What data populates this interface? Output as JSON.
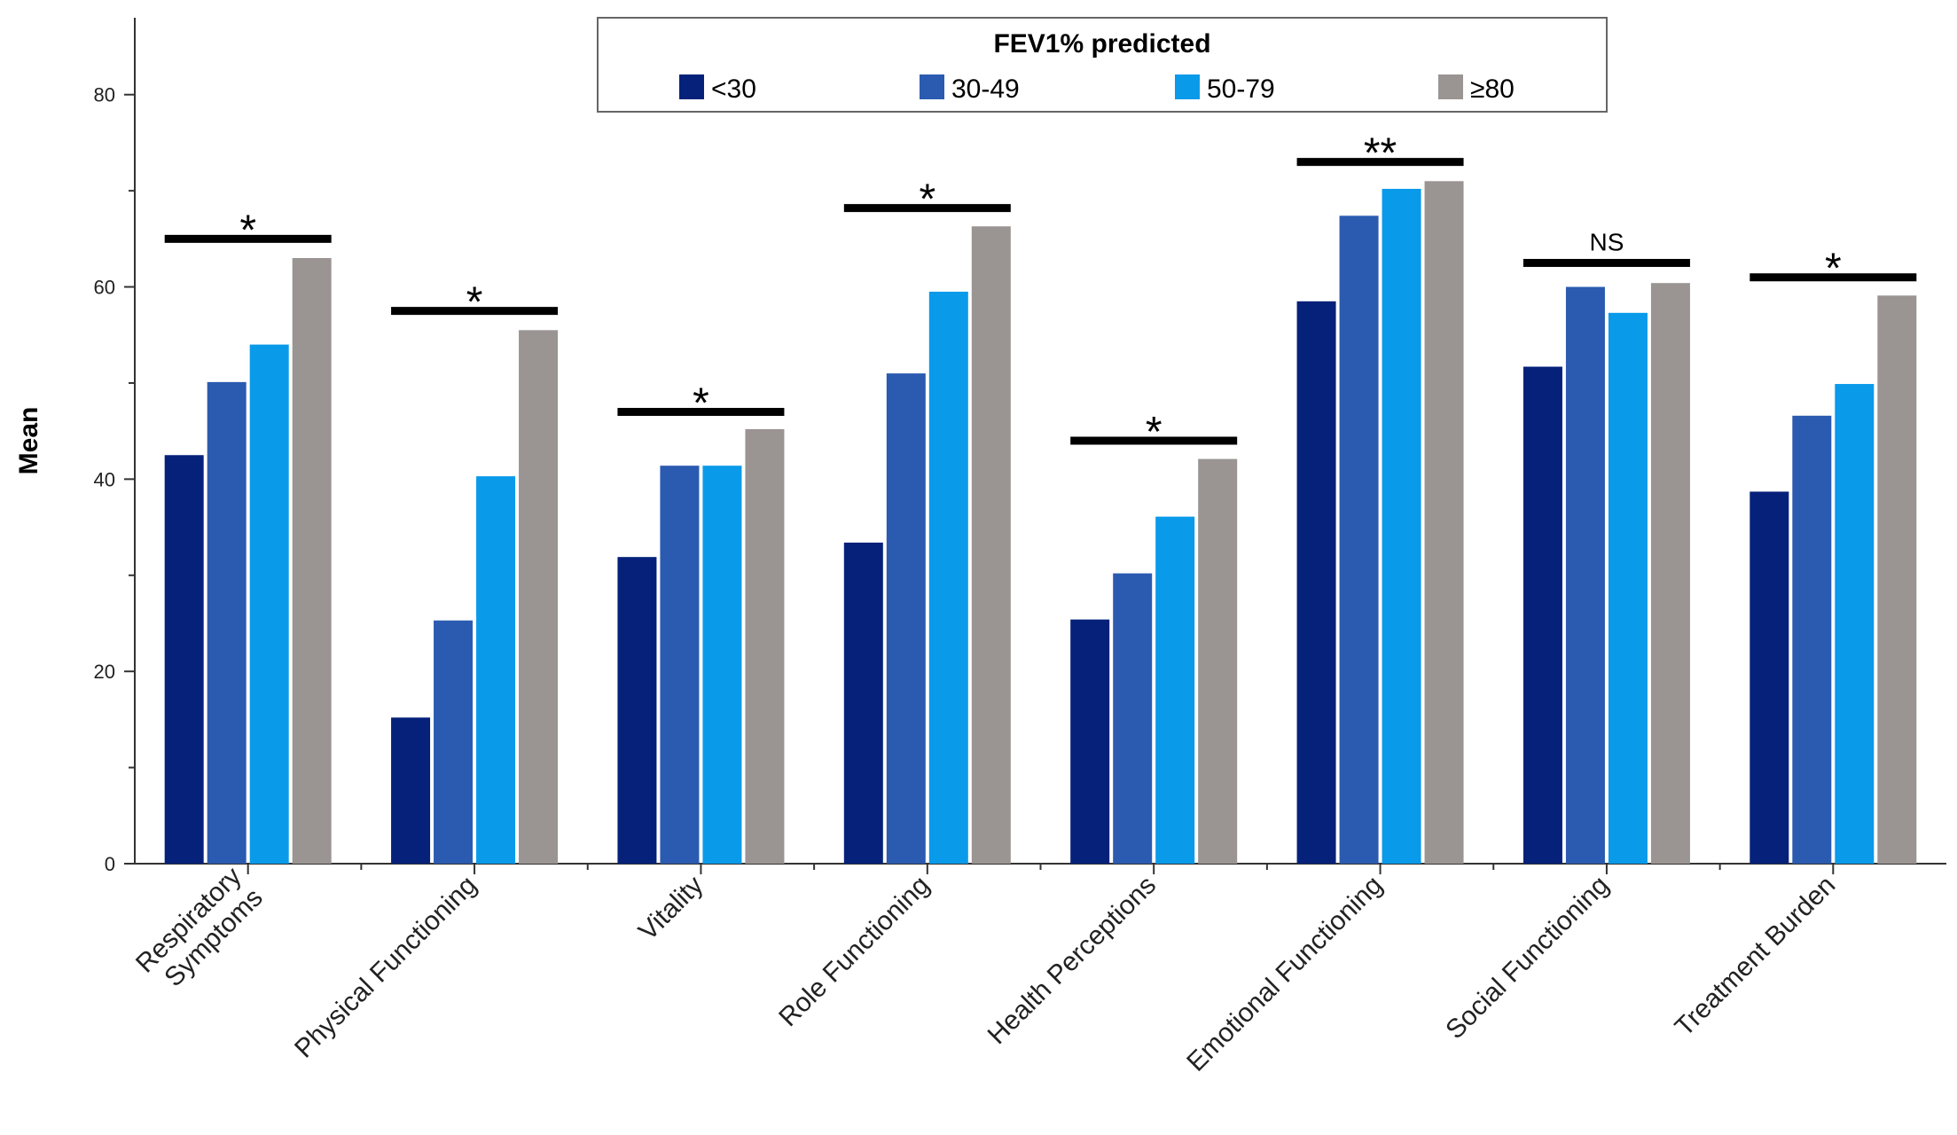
{
  "chart_data": {
    "type": "bar",
    "title": "",
    "xlabel": "",
    "ylabel": "Mean",
    "ylim": [
      0,
      88
    ],
    "yticks": [
      0,
      20,
      40,
      60,
      80
    ],
    "yticks_labels": [
      "0",
      "20",
      "40",
      "60",
      "80"
    ],
    "grid": false,
    "legend_title": "FEV1% predicted",
    "legend_position": "top-center",
    "categories": [
      "Respiratory Symptoms",
      "Physical Functioning",
      "Vitality",
      "Role Functioning",
      "Health Perceptions",
      "Emotional Functioning",
      "Social Functioning",
      "Treatment Burden"
    ],
    "category_lines": [
      [
        "Respiratory",
        "Symptoms"
      ],
      [
        "Physical Functioning"
      ],
      [
        "Vitality"
      ],
      [
        "Role Functioning"
      ],
      [
        "Health Perceptions"
      ],
      [
        "Emotional Functioning"
      ],
      [
        "Social Functioning"
      ],
      [
        "Treatment Burden"
      ]
    ],
    "series": [
      {
        "name": "<30",
        "color": "#05217a",
        "values": [
          42.5,
          15.2,
          31.9,
          33.4,
          25.4,
          58.5,
          51.7,
          38.7
        ]
      },
      {
        "name": "30-49",
        "color": "#2b5bb0",
        "values": [
          50.1,
          25.3,
          41.4,
          51.0,
          30.2,
          67.4,
          60.0,
          46.6
        ]
      },
      {
        "name": "50-79",
        "color": "#0a9aea",
        "values": [
          54.0,
          40.3,
          41.4,
          59.5,
          36.1,
          70.2,
          57.3,
          49.9
        ]
      },
      {
        "name": "≥80",
        "color": "#9a9592",
        "values": [
          63.0,
          55.5,
          45.2,
          66.3,
          42.1,
          71.0,
          60.4,
          59.1
        ]
      }
    ],
    "significance": [
      {
        "label": "*",
        "level": 65.0
      },
      {
        "label": "*",
        "level": 57.5
      },
      {
        "label": "*",
        "level": 47.0
      },
      {
        "label": "*",
        "level": 68.2
      },
      {
        "label": "*",
        "level": 44.0
      },
      {
        "label": "**",
        "level": 73.0
      },
      {
        "label": "NS",
        "level": 62.5
      },
      {
        "label": "*",
        "level": 61.0
      }
    ]
  }
}
